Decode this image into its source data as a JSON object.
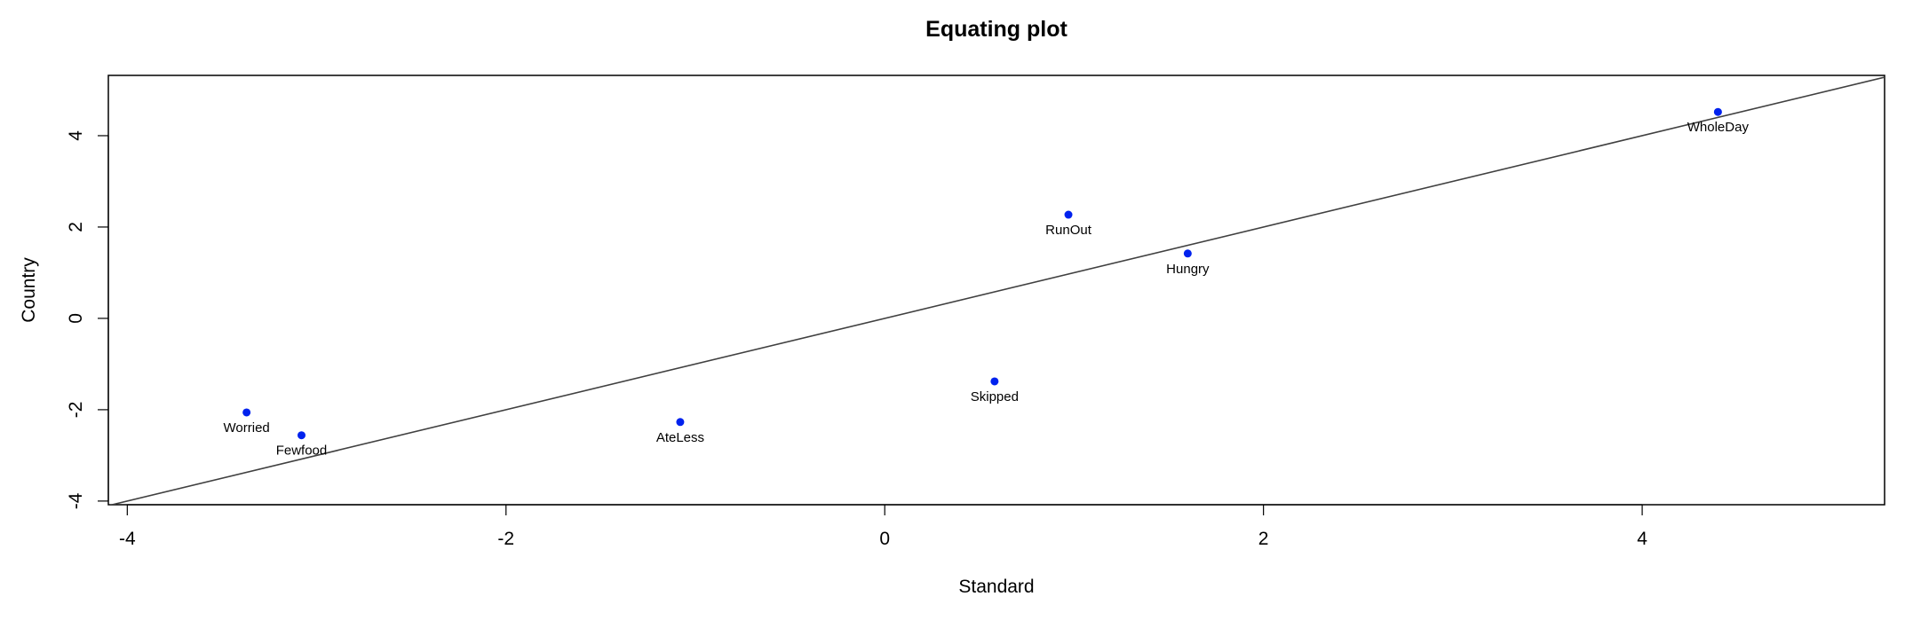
{
  "chart_data": {
    "type": "scatter",
    "title": "Equating plot",
    "xlabel": "Standard",
    "ylabel": "Country",
    "xlim": [
      -4.1,
      5.28
    ],
    "ylim": [
      -4.08,
      5.32
    ],
    "xticks": [
      -4,
      -2,
      0,
      2,
      4
    ],
    "yticks": [
      -4,
      -2,
      0,
      2,
      4
    ],
    "grid": false,
    "point_color": "#0022ee",
    "line_color": "#404040",
    "reference_line": {
      "intercept": 0,
      "slope": 1
    },
    "points": [
      {
        "label": "Worried",
        "x": -3.37,
        "y": -2.06
      },
      {
        "label": "Fewfood",
        "x": -3.08,
        "y": -2.56
      },
      {
        "label": "AteLess",
        "x": -1.08,
        "y": -2.27
      },
      {
        "label": "Skipped",
        "x": 0.58,
        "y": -1.38
      },
      {
        "label": "RunOut",
        "x": 0.97,
        "y": 2.27
      },
      {
        "label": "Hungry",
        "x": 1.6,
        "y": 1.42
      },
      {
        "label": "WholeDay",
        "x": 4.4,
        "y": 4.52
      }
    ]
  }
}
